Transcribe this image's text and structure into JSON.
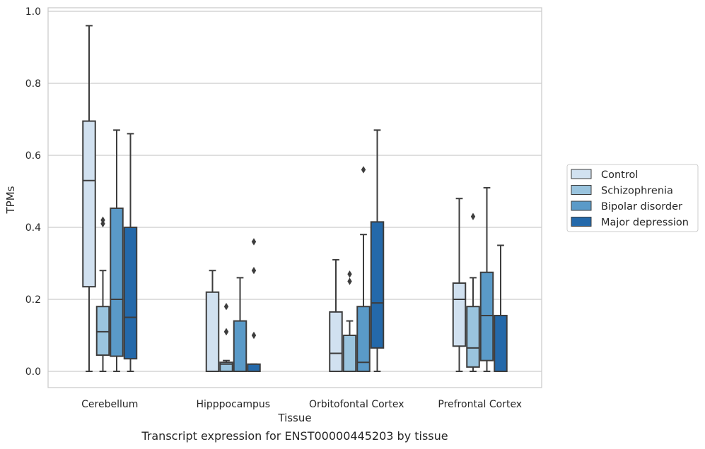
{
  "chart_data": {
    "type": "box",
    "caption": "Transcript expression for ENST00000445203 by tissue",
    "xlabel": "Tissue",
    "ylabel": "TPMs",
    "ylim": [
      -0.045,
      1.01
    ],
    "yticks": [
      "0.0",
      "0.2",
      "0.4",
      "0.6",
      "0.8",
      "1.0"
    ],
    "grid": "horizontal",
    "legend_position": "right",
    "categories": [
      "Cerebellum",
      "Hipppocampus",
      "Orbitofontal Cortex",
      "Prefrontal Cortex"
    ],
    "series": [
      {
        "name": "Control",
        "color": "#d1e1f0",
        "boxes": [
          {
            "whisker_low": 0.0,
            "q1": 0.235,
            "median": 0.53,
            "q3": 0.695,
            "whisker_high": 0.96,
            "outliers": []
          },
          {
            "whisker_low": 0.0,
            "q1": 0.0,
            "median": 0.0,
            "q3": 0.22,
            "whisker_high": 0.28,
            "outliers": []
          },
          {
            "whisker_low": 0.0,
            "q1": 0.0,
            "median": 0.05,
            "q3": 0.165,
            "whisker_high": 0.31,
            "outliers": []
          },
          {
            "whisker_low": 0.0,
            "q1": 0.07,
            "median": 0.2,
            "q3": 0.245,
            "whisker_high": 0.48,
            "outliers": []
          }
        ]
      },
      {
        "name": "Schizophrenia",
        "color": "#9ac4de",
        "boxes": [
          {
            "whisker_low": 0.0,
            "q1": 0.045,
            "median": 0.11,
            "q3": 0.18,
            "whisker_high": 0.28,
            "outliers": [
              0.41,
              0.42
            ]
          },
          {
            "whisker_low": 0.0,
            "q1": 0.0,
            "median": 0.02,
            "q3": 0.025,
            "whisker_high": 0.03,
            "outliers": [
              0.11,
              0.11,
              0.18
            ]
          },
          {
            "whisker_low": 0.0,
            "q1": 0.0,
            "median": 0.0,
            "q3": 0.1,
            "whisker_high": 0.14,
            "outliers": [
              0.25,
              0.27
            ]
          },
          {
            "whisker_low": 0.0,
            "q1": 0.012,
            "median": 0.065,
            "q3": 0.18,
            "whisker_high": 0.26,
            "outliers": [
              0.43
            ]
          }
        ]
      },
      {
        "name": "Bipolar disorder",
        "color": "#5a9ac8",
        "boxes": [
          {
            "whisker_low": 0.0,
            "q1": 0.042,
            "median": 0.2,
            "q3": 0.453,
            "whisker_high": 0.67,
            "outliers": []
          },
          {
            "whisker_low": 0.0,
            "q1": 0.0,
            "median": 0.0,
            "q3": 0.14,
            "whisker_high": 0.26,
            "outliers": []
          },
          {
            "whisker_low": 0.0,
            "q1": 0.0,
            "median": 0.025,
            "q3": 0.18,
            "whisker_high": 0.38,
            "outliers": [
              0.56
            ]
          },
          {
            "whisker_low": 0.0,
            "q1": 0.03,
            "median": 0.155,
            "q3": 0.275,
            "whisker_high": 0.51,
            "outliers": []
          }
        ]
      },
      {
        "name": "Major depression",
        "color": "#2469aa",
        "boxes": [
          {
            "whisker_low": 0.0,
            "q1": 0.035,
            "median": 0.15,
            "q3": 0.4,
            "whisker_high": 0.66,
            "outliers": []
          },
          {
            "whisker_low": 0.0,
            "q1": 0.0,
            "median": 0.0,
            "q3": 0.02,
            "whisker_high": 0.02,
            "outliers": [
              0.1,
              0.28,
              0.36
            ]
          },
          {
            "whisker_low": 0.0,
            "q1": 0.065,
            "median": 0.19,
            "q3": 0.415,
            "whisker_high": 0.67,
            "outliers": []
          },
          {
            "whisker_low": 0.0,
            "q1": 0.0,
            "median": 0.0,
            "q3": 0.155,
            "whisker_high": 0.35,
            "outliers": []
          }
        ]
      }
    ]
  }
}
